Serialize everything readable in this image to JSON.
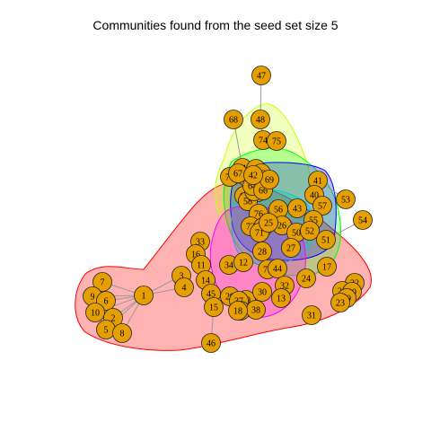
{
  "title": "Communities found from the seed set size 5",
  "colors": {
    "node_fill": "#E69F00",
    "node_stroke": "#222222",
    "edge": "#9a9a9a",
    "community_red": "#FF0000",
    "community_green": "#00FF00",
    "community_yellow": "#CCFF00",
    "community_blue": "#0000FF",
    "community_magenta": "#FF00FF",
    "community_teal": "#00CCCC"
  },
  "nodes": [
    "47",
    "68",
    "48",
    "74",
    "75",
    "61",
    "36",
    "62",
    "77",
    "60",
    "63",
    "41",
    "53",
    "49",
    "40",
    "65",
    "58",
    "57",
    "43",
    "56",
    "76",
    "55",
    "54",
    "33",
    "72",
    "70",
    "26",
    "50",
    "52",
    "71",
    "51",
    "16",
    "22",
    "27",
    "28",
    "11",
    "34",
    "12",
    "73",
    "44",
    "17",
    "3",
    "14",
    "24",
    "4",
    "32",
    "21",
    "20",
    "19",
    "1",
    "7",
    "9",
    "45",
    "29",
    "39",
    "37",
    "30",
    "6",
    "13",
    "10",
    "2",
    "35",
    "38",
    "5",
    "8",
    "31",
    "46",
    "15",
    "18",
    "23",
    "25",
    "59",
    "64",
    "66",
    "67",
    "69",
    "42"
  ],
  "edges": [
    [
      "47",
      "48"
    ],
    [
      "68",
      "61"
    ],
    [
      "48",
      "74"
    ],
    [
      "74",
      "75"
    ],
    [
      "1",
      "9"
    ],
    [
      "1",
      "6"
    ],
    [
      "1",
      "7"
    ],
    [
      "1",
      "10"
    ],
    [
      "1",
      "2"
    ],
    [
      "1",
      "5"
    ],
    [
      "1",
      "8"
    ],
    [
      "1",
      "3"
    ],
    [
      "1",
      "4"
    ],
    [
      "3",
      "4"
    ],
    [
      "7",
      "9"
    ],
    [
      "9",
      "6"
    ],
    [
      "6",
      "10"
    ],
    [
      "10",
      "2"
    ],
    [
      "2",
      "5"
    ],
    [
      "5",
      "8"
    ],
    [
      "45",
      "14"
    ],
    [
      "14",
      "15"
    ],
    [
      "29",
      "39"
    ],
    [
      "37",
      "30"
    ],
    [
      "35",
      "38"
    ],
    [
      "13",
      "32"
    ],
    [
      "53",
      "41"
    ],
    [
      "54",
      "51"
    ],
    [
      "17",
      "24"
    ],
    [
      "22",
      "21"
    ],
    [
      "20",
      "19"
    ],
    [
      "46",
      "15"
    ],
    [
      "41",
      "40"
    ],
    [
      "40",
      "57"
    ],
    [
      "57",
      "55"
    ],
    [
      "55",
      "51"
    ],
    [
      "73",
      "44"
    ],
    [
      "16",
      "11"
    ],
    [
      "33",
      "16"
    ]
  ]
}
